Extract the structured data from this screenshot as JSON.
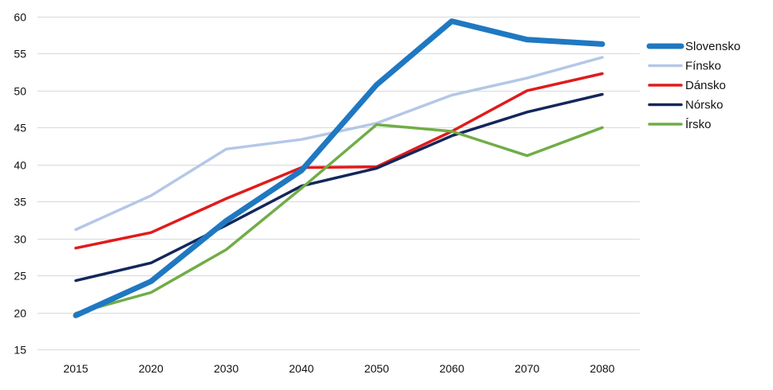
{
  "chart_data": {
    "type": "line",
    "title": "",
    "xlabel": "",
    "ylabel": "",
    "categories": [
      "2015",
      "2020",
      "2030",
      "2040",
      "2050",
      "2060",
      "2070",
      "2080"
    ],
    "ylim": [
      15,
      60
    ],
    "yticks": [
      15,
      20,
      25,
      30,
      35,
      40,
      45,
      50,
      55,
      60
    ],
    "grid": "horizontal",
    "legend_position": "right",
    "series": [
      {
        "name": "Slovensko",
        "color": "#1f78c1",
        "emphasis": "thick",
        "values": [
          19.6,
          24.2,
          32.4,
          39.2,
          50.8,
          59.4,
          56.9,
          56.3
        ]
      },
      {
        "name": "Fínsko",
        "color": "#b4c7e7",
        "emphasis": "normal",
        "values": [
          31.2,
          35.8,
          42.1,
          43.4,
          45.6,
          49.4,
          51.7,
          54.5
        ]
      },
      {
        "name": "Dánsko",
        "color": "#e01b1b",
        "emphasis": "normal",
        "values": [
          28.7,
          30.8,
          35.4,
          39.6,
          39.7,
          44.5,
          50.0,
          52.3
        ]
      },
      {
        "name": "Nórsko",
        "color": "#13275c",
        "emphasis": "normal",
        "values": [
          24.3,
          26.7,
          31.8,
          37.1,
          39.5,
          43.9,
          47.1,
          49.5
        ]
      },
      {
        "name": "Írsko",
        "color": "#70ad47",
        "emphasis": "normal",
        "values": [
          19.9,
          22.7,
          28.5,
          36.8,
          45.4,
          44.5,
          41.2,
          45.0
        ]
      }
    ]
  }
}
